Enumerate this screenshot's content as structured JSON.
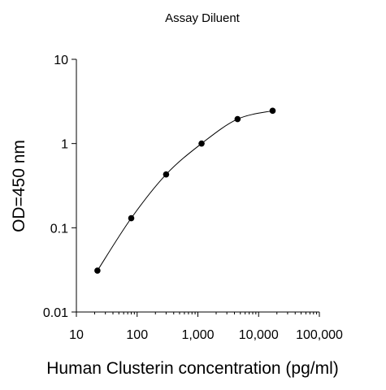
{
  "chart_data": {
    "type": "scatter",
    "title": "Assay Diluent",
    "xlabel": "Human Clusterin concentration (pg/ml)",
    "ylabel": "OD=450 nm",
    "xscale": "log",
    "yscale": "log",
    "xlim": [
      10,
      100000
    ],
    "ylim": [
      0.01,
      10
    ],
    "x_ticks": [
      10,
      100,
      1000,
      10000,
      100000
    ],
    "x_tick_labels": [
      "10",
      "100",
      "1,000",
      "10,000",
      "100,000"
    ],
    "y_ticks": [
      0.01,
      0.1,
      1,
      10
    ],
    "y_tick_labels": [
      "0.01",
      "0.1",
      "1",
      "10"
    ],
    "grid": false,
    "legend": "none",
    "series": [
      {
        "x": [
          22.2,
          80,
          300,
          1150,
          4500,
          17000
        ],
        "y": [
          0.031,
          0.13,
          0.43,
          1.0,
          1.95,
          2.45
        ],
        "fit_curve": true
      }
    ],
    "colors": {
      "marker": "#000000",
      "line": "#000000",
      "axis": "#000000"
    }
  }
}
